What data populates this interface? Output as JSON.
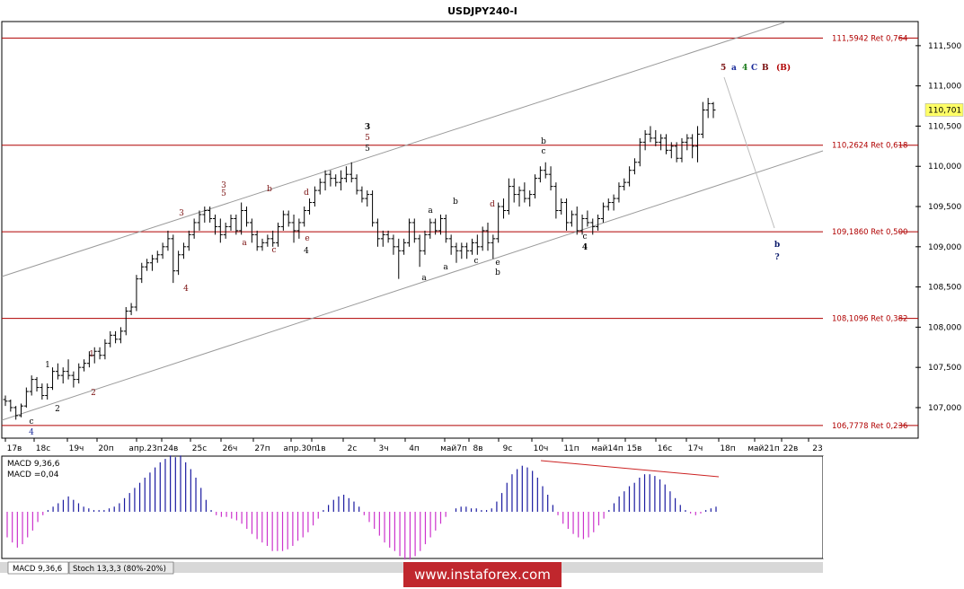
{
  "title": "USDJPY240-I",
  "colors": {
    "level_line": "#b00000",
    "channel": "#9a9a9a",
    "bar": "#000000",
    "macd_up": "#1a1aa0",
    "macd_down": "#cc33cc",
    "divergence": "#cc2222",
    "watermark_bg": "#c0272d",
    "label_blue": "#1a2a9a",
    "label_green": "#1a7a1a",
    "label_darkred": "#7a1010",
    "label_navy": "#0a1a6a"
  },
  "current_price": "110,701",
  "y_ticks": [
    "111,500",
    "111,000",
    "110,500",
    "110,000",
    "109,500",
    "109,000",
    "108,500",
    "108,000",
    "107,500",
    "107,000"
  ],
  "levels": [
    {
      "label": "111,5942 Ret 0,764",
      "value": 111.5942
    },
    {
      "label": "110,2624 Ret 0,618",
      "value": 110.2624
    },
    {
      "label": "109,1860 Ret 0,500",
      "value": 109.186
    },
    {
      "label": "108,1096 Ret 0,382",
      "value": 108.1096
    },
    {
      "label": "106,7778 Ret 0,236",
      "value": 106.7778
    }
  ],
  "x_labels": [
    "17в",
    "18с",
    "19ч",
    "20п",
    "апр.23п",
    "24в",
    "25с",
    "26ч",
    "27п",
    "апр.30п",
    "1в",
    "2с",
    "3ч",
    "4п",
    "май7п",
    "8в",
    "9с",
    "10ч",
    "11п",
    "май14п",
    "15в",
    "16с",
    "17ч",
    "18п",
    "май21п",
    "22в",
    "23"
  ],
  "wave_labels": [
    {
      "text": "c",
      "color": "#000000"
    },
    {
      "text": "4",
      "color": "#1a2a9a"
    },
    {
      "text": "1",
      "color": "#7a1010"
    },
    {
      "text": "1",
      "color": "#000000"
    },
    {
      "text": "2",
      "color": "#000000"
    },
    {
      "text": "2",
      "color": "#7a1010"
    },
    {
      "text": "3",
      "color": "#7a1010"
    },
    {
      "text": "4",
      "color": "#7a1010"
    },
    {
      "text": "3",
      "color": "#7a1010"
    },
    {
      "text": "5",
      "color": "#7a1010"
    },
    {
      "text": "a",
      "color": "#7a1010"
    },
    {
      "text": "b",
      "color": "#7a1010"
    },
    {
      "text": "c",
      "color": "#7a1010"
    },
    {
      "text": "d",
      "color": "#7a1010"
    },
    {
      "text": "e",
      "color": "#7a1010"
    },
    {
      "text": "4",
      "color": "#000000"
    },
    {
      "text": "3",
      "color": "#000000"
    },
    {
      "text": "5",
      "color": "#7a1010"
    },
    {
      "text": "5",
      "color": "#000000"
    },
    {
      "text": "a",
      "color": "#000000"
    },
    {
      "text": "a",
      "color": "#000000"
    },
    {
      "text": "a",
      "color": "#000000"
    },
    {
      "text": "b",
      "color": "#000000"
    },
    {
      "text": "c",
      "color": "#000000"
    },
    {
      "text": "d",
      "color": "#7a1010"
    },
    {
      "text": "e",
      "color": "#000000"
    },
    {
      "text": "b",
      "color": "#000000"
    },
    {
      "text": "b",
      "color": "#000000"
    },
    {
      "text": "c",
      "color": "#000000"
    },
    {
      "text": "c",
      "color": "#000000"
    },
    {
      "text": "4",
      "color": "#000000"
    },
    {
      "text": "b",
      "color": "#0a1a6a"
    },
    {
      "text": "?",
      "color": "#0a1a6a"
    }
  ],
  "wave_count": [
    {
      "text": "5",
      "color": "#7a1010"
    },
    {
      "text": "a",
      "color": "#1a2a9a"
    },
    {
      "text": "4",
      "color": "#1a7a1a"
    },
    {
      "text": "C",
      "color": "#1a2a9a"
    },
    {
      "text": "B",
      "color": "#7a1010"
    },
    {
      "text": "(B)",
      "color": "#b00000"
    }
  ],
  "macd": {
    "label": "MACD 9,36,6",
    "value_label": "MACD =0,04"
  },
  "tabs": [
    "MACD 9,36,6",
    "Stoch 13,3,3 (80%-20%)"
  ],
  "watermark": "www.instaforex.com",
  "chart_data": {
    "type": "candlestick",
    "symbol": "USDJPY",
    "timeframe": "H4",
    "y_range": [
      106.62,
      111.8
    ],
    "ohlc": [
      [
        107.1,
        107.15,
        107.02,
        107.08
      ],
      [
        107.08,
        107.1,
        106.95,
        107.0
      ],
      [
        107.0,
        107.02,
        106.85,
        106.9
      ],
      [
        106.9,
        107.05,
        106.88,
        107.02
      ],
      [
        107.02,
        107.25,
        107.0,
        107.2
      ],
      [
        107.2,
        107.4,
        107.15,
        107.35
      ],
      [
        107.35,
        107.38,
        107.2,
        107.25
      ],
      [
        107.25,
        107.3,
        107.1,
        107.15
      ],
      [
        107.15,
        107.3,
        107.1,
        107.25
      ],
      [
        107.25,
        107.5,
        107.22,
        107.45
      ],
      [
        107.45,
        107.55,
        107.35,
        107.4
      ],
      [
        107.4,
        107.5,
        107.3,
        107.45
      ],
      [
        107.45,
        107.6,
        107.35,
        107.4
      ],
      [
        107.4,
        107.45,
        107.25,
        107.35
      ],
      [
        107.35,
        107.55,
        107.3,
        107.5
      ],
      [
        107.5,
        107.6,
        107.45,
        107.55
      ],
      [
        107.55,
        107.7,
        107.5,
        107.65
      ],
      [
        107.65,
        107.75,
        107.55,
        107.7
      ],
      [
        107.7,
        107.75,
        107.6,
        107.65
      ],
      [
        107.65,
        107.85,
        107.6,
        107.8
      ],
      [
        107.8,
        107.95,
        107.75,
        107.9
      ],
      [
        107.9,
        107.95,
        107.8,
        107.85
      ],
      [
        107.85,
        108.0,
        107.8,
        107.95
      ],
      [
        107.95,
        108.25,
        107.9,
        108.2
      ],
      [
        108.2,
        108.3,
        108.15,
        108.25
      ],
      [
        108.25,
        108.65,
        108.2,
        108.6
      ],
      [
        108.6,
        108.8,
        108.55,
        108.75
      ],
      [
        108.75,
        108.85,
        108.7,
        108.8
      ],
      [
        108.8,
        108.9,
        108.7,
        108.85
      ],
      [
        108.85,
        108.95,
        108.8,
        108.9
      ],
      [
        108.9,
        109.05,
        108.85,
        109.0
      ],
      [
        109.0,
        109.2,
        108.95,
        109.1
      ],
      [
        109.1,
        109.15,
        108.55,
        108.7
      ],
      [
        108.7,
        108.95,
        108.65,
        108.9
      ],
      [
        108.9,
        109.05,
        108.85,
        109.0
      ],
      [
        109.0,
        109.2,
        108.95,
        109.15
      ],
      [
        109.15,
        109.35,
        109.1,
        109.3
      ],
      [
        109.3,
        109.45,
        109.2,
        109.4
      ],
      [
        109.4,
        109.5,
        109.3,
        109.45
      ],
      [
        109.45,
        109.5,
        109.3,
        109.35
      ],
      [
        109.35,
        109.4,
        109.15,
        109.25
      ],
      [
        109.25,
        109.35,
        109.05,
        109.15
      ],
      [
        109.15,
        109.3,
        109.1,
        109.25
      ],
      [
        109.25,
        109.4,
        109.2,
        109.35
      ],
      [
        109.35,
        109.4,
        109.15,
        109.2
      ],
      [
        109.2,
        109.55,
        109.15,
        109.45
      ],
      [
        109.45,
        109.5,
        109.25,
        109.3
      ],
      [
        109.3,
        109.35,
        109.05,
        109.15
      ],
      [
        109.15,
        109.2,
        108.95,
        109.0
      ],
      [
        109.0,
        109.1,
        108.95,
        109.05
      ],
      [
        109.05,
        109.15,
        109.0,
        109.1
      ],
      [
        109.1,
        109.2,
        109.0,
        109.05
      ],
      [
        109.05,
        109.3,
        109.0,
        109.25
      ],
      [
        109.25,
        109.45,
        109.2,
        109.4
      ],
      [
        109.4,
        109.45,
        109.25,
        109.3
      ],
      [
        109.3,
        109.4,
        109.05,
        109.2
      ],
      [
        109.2,
        109.35,
        109.1,
        109.3
      ],
      [
        109.3,
        109.5,
        109.25,
        109.45
      ],
      [
        109.45,
        109.6,
        109.4,
        109.55
      ],
      [
        109.55,
        109.75,
        109.5,
        109.7
      ],
      [
        109.7,
        109.85,
        109.65,
        109.8
      ],
      [
        109.8,
        109.95,
        109.7,
        109.9
      ],
      [
        109.9,
        109.95,
        109.75,
        109.85
      ],
      [
        109.85,
        109.9,
        109.75,
        109.8
      ],
      [
        109.8,
        109.95,
        109.7,
        109.85
      ],
      [
        109.85,
        110.0,
        109.8,
        109.9
      ],
      [
        109.9,
        110.05,
        109.8,
        109.85
      ],
      [
        109.85,
        109.9,
        109.65,
        109.7
      ],
      [
        109.7,
        109.75,
        109.55,
        109.6
      ],
      [
        109.6,
        109.7,
        109.5,
        109.65
      ],
      [
        109.65,
        109.7,
        109.25,
        109.3
      ],
      [
        109.3,
        109.35,
        109.0,
        109.1
      ],
      [
        109.1,
        109.2,
        109.0,
        109.15
      ],
      [
        109.15,
        109.2,
        109.05,
        109.1
      ],
      [
        109.1,
        109.15,
        108.9,
        109.0
      ],
      [
        109.0,
        109.1,
        108.6,
        108.95
      ],
      [
        108.95,
        109.1,
        108.9,
        109.05
      ],
      [
        109.05,
        109.35,
        109.0,
        109.3
      ],
      [
        109.3,
        109.35,
        109.05,
        109.1
      ],
      [
        109.1,
        109.15,
        108.75,
        108.95
      ],
      [
        108.95,
        109.2,
        108.9,
        109.15
      ],
      [
        109.15,
        109.35,
        109.1,
        109.3
      ],
      [
        109.3,
        109.35,
        109.15,
        109.2
      ],
      [
        109.2,
        109.4,
        109.15,
        109.35
      ],
      [
        109.35,
        109.4,
        109.05,
        109.1
      ],
      [
        109.1,
        109.15,
        108.9,
        109.0
      ],
      [
        109.0,
        109.05,
        108.8,
        108.95
      ],
      [
        108.95,
        109.05,
        108.85,
        109.0
      ],
      [
        109.0,
        109.05,
        108.85,
        108.95
      ],
      [
        108.95,
        109.1,
        108.9,
        109.05
      ],
      [
        109.05,
        109.15,
        108.9,
        109.0
      ],
      [
        109.0,
        109.25,
        108.95,
        109.2
      ],
      [
        109.2,
        109.3,
        108.95,
        109.05
      ],
      [
        109.05,
        109.15,
        108.85,
        109.1
      ],
      [
        109.1,
        109.55,
        109.05,
        109.5
      ],
      [
        109.5,
        109.6,
        109.35,
        109.45
      ],
      [
        109.45,
        109.85,
        109.4,
        109.75
      ],
      [
        109.75,
        109.85,
        109.55,
        109.65
      ],
      [
        109.65,
        109.75,
        109.5,
        109.7
      ],
      [
        109.7,
        109.8,
        109.55,
        109.6
      ],
      [
        109.6,
        109.7,
        109.5,
        109.65
      ],
      [
        109.65,
        109.9,
        109.6,
        109.85
      ],
      [
        109.85,
        110.0,
        109.8,
        109.95
      ],
      [
        109.95,
        110.05,
        109.85,
        109.9
      ],
      [
        109.9,
        110.0,
        109.7,
        109.75
      ],
      [
        109.75,
        109.8,
        109.35,
        109.45
      ],
      [
        109.45,
        109.6,
        109.4,
        109.55
      ],
      [
        109.55,
        109.6,
        109.2,
        109.3
      ],
      [
        109.3,
        109.45,
        109.25,
        109.4
      ],
      [
        109.4,
        109.5,
        109.15,
        109.2
      ],
      [
        109.2,
        109.4,
        109.15,
        109.35
      ],
      [
        109.35,
        109.45,
        109.25,
        109.3
      ],
      [
        109.3,
        109.35,
        109.15,
        109.25
      ],
      [
        109.25,
        109.4,
        109.2,
        109.35
      ],
      [
        109.35,
        109.55,
        109.3,
        109.5
      ],
      [
        109.5,
        109.6,
        109.45,
        109.55
      ],
      [
        109.55,
        109.65,
        109.45,
        109.6
      ],
      [
        109.6,
        109.8,
        109.55,
        109.75
      ],
      [
        109.75,
        109.85,
        109.7,
        109.8
      ],
      [
        109.8,
        110.0,
        109.75,
        109.95
      ],
      [
        109.95,
        110.1,
        109.9,
        110.05
      ],
      [
        110.05,
        110.35,
        110.0,
        110.3
      ],
      [
        110.3,
        110.45,
        110.2,
        110.4
      ],
      [
        110.4,
        110.5,
        110.3,
        110.35
      ],
      [
        110.35,
        110.45,
        110.25,
        110.3
      ],
      [
        110.3,
        110.4,
        110.2,
        110.35
      ],
      [
        110.35,
        110.4,
        110.15,
        110.2
      ],
      [
        110.2,
        110.3,
        110.1,
        110.25
      ],
      [
        110.25,
        110.3,
        110.05,
        110.1
      ],
      [
        110.1,
        110.35,
        110.05,
        110.3
      ],
      [
        110.3,
        110.4,
        110.2,
        110.35
      ],
      [
        110.35,
        110.4,
        110.1,
        110.25
      ],
      [
        110.25,
        110.5,
        110.05,
        110.4
      ],
      [
        110.4,
        110.8,
        110.35,
        110.7
      ],
      [
        110.7,
        110.85,
        110.6,
        110.78
      ],
      [
        110.78,
        110.8,
        110.6,
        110.7
      ]
    ],
    "macd_histogram": [
      -0.3,
      -0.36,
      -0.42,
      -0.38,
      -0.3,
      -0.22,
      -0.12,
      -0.04,
      0.02,
      0.06,
      0.1,
      0.14,
      0.18,
      0.14,
      0.1,
      0.06,
      0.04,
      0.02,
      0.02,
      0.02,
      0.04,
      0.06,
      0.1,
      0.16,
      0.22,
      0.28,
      0.34,
      0.4,
      0.46,
      0.52,
      0.58,
      0.62,
      0.66,
      0.64,
      0.66,
      0.58,
      0.5,
      0.4,
      0.28,
      0.14,
      0.02,
      -0.04,
      -0.06,
      -0.06,
      -0.08,
      -0.1,
      -0.14,
      -0.2,
      -0.26,
      -0.32,
      -0.36,
      -0.4,
      -0.46,
      -0.46,
      -0.46,
      -0.44,
      -0.4,
      -0.34,
      -0.3,
      -0.24,
      -0.16,
      -0.08,
      0.02,
      0.08,
      0.14,
      0.18,
      0.2,
      0.16,
      0.12,
      0.06,
      -0.04,
      -0.12,
      -0.2,
      -0.28,
      -0.36,
      -0.42,
      -0.46,
      -0.52,
      -0.56,
      -0.56,
      -0.52,
      -0.46,
      -0.38,
      -0.3,
      -0.22,
      -0.14,
      -0.06,
      0.0,
      0.04,
      0.06,
      0.06,
      0.04,
      0.04,
      0.02,
      0.02,
      0.04,
      0.12,
      0.22,
      0.34,
      0.44,
      0.5,
      0.54,
      0.52,
      0.48,
      0.4,
      0.3,
      0.2,
      0.08,
      -0.04,
      -0.14,
      -0.2,
      -0.26,
      -0.3,
      -0.32,
      -0.3,
      -0.24,
      -0.16,
      -0.08,
      0.02,
      0.1,
      0.18,
      0.24,
      0.3,
      0.34,
      0.4,
      0.44,
      0.44,
      0.42,
      0.38,
      0.32,
      0.24,
      0.16,
      0.08,
      0.02,
      -0.02,
      -0.04,
      -0.02,
      0.02,
      0.04,
      0.06
    ]
  }
}
